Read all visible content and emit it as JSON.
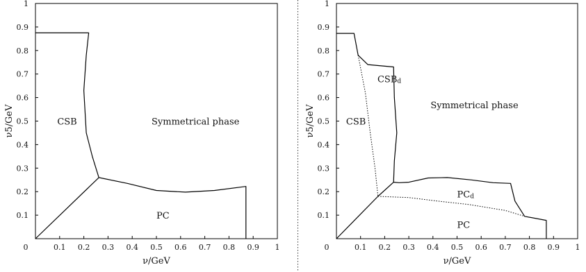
{
  "chart_data": [
    {
      "type": "line",
      "xlabel": "ν/GeV",
      "ylabel": "ν5/GeV",
      "xlim": [
        0,
        1
      ],
      "ylim": [
        0,
        1
      ],
      "xticks": [
        "0",
        "0.1",
        "0.2",
        "0.3",
        "0.4",
        "0.5",
        "0.6",
        "0.7",
        "0.8",
        "0.9",
        "1"
      ],
      "yticks": [
        "0.1",
        "0.2",
        "0.3",
        "0.4",
        "0.5",
        "0.6",
        "0.7",
        "0.8",
        "0.9",
        "1"
      ],
      "regions": [
        {
          "label": "CSB",
          "x": 0.09,
          "y": 0.5
        },
        {
          "label": "Symmetrical phase",
          "x": 0.48,
          "y": 0.5
        },
        {
          "label": "PC",
          "x": 0.5,
          "y": 0.1
        }
      ],
      "series": [
        {
          "style": "solid",
          "points": [
            [
              0,
              0.875
            ],
            [
              0.22,
              0.875
            ],
            [
              0.21,
              0.78
            ],
            [
              0.2,
              0.63
            ],
            [
              0.21,
              0.45
            ],
            [
              0.235,
              0.35
            ],
            [
              0.262,
              0.26
            ]
          ]
        },
        {
          "style": "solid",
          "points": [
            [
              0,
              0
            ],
            [
              0.262,
              0.26
            ]
          ]
        },
        {
          "style": "solid",
          "points": [
            [
              0.262,
              0.26
            ],
            [
              0.38,
              0.235
            ],
            [
              0.5,
              0.205
            ],
            [
              0.62,
              0.198
            ],
            [
              0.74,
              0.205
            ],
            [
              0.87,
              0.222
            ],
            [
              0.87,
              0
            ]
          ]
        }
      ]
    },
    {
      "type": "line",
      "xlabel": "ν/GeV",
      "ylabel": "ν5/GeV",
      "xlim": [
        0,
        1
      ],
      "ylim": [
        0,
        1
      ],
      "xticks": [
        "0",
        "0.1",
        "0.2",
        "0.3",
        "0.4",
        "0.5",
        "0.6",
        "0.7",
        "0.8",
        "0.9",
        "1"
      ],
      "yticks": [
        "0.1",
        "0.2",
        "0.3",
        "0.4",
        "0.5",
        "0.6",
        "0.7",
        "0.8",
        "0.9",
        "1"
      ],
      "regions": [
        {
          "label": "CSB",
          "x": 0.04,
          "y": 0.5
        },
        {
          "label": "CSB",
          "sub": "d",
          "x": 0.17,
          "y": 0.68
        },
        {
          "label": "Symmetrical phase",
          "x": 0.39,
          "y": 0.57
        },
        {
          "label": "PC",
          "sub": "d",
          "x": 0.5,
          "y": 0.19
        },
        {
          "label": "PC",
          "x": 0.5,
          "y": 0.06
        }
      ],
      "series": [
        {
          "style": "solid",
          "points": [
            [
              0,
              0.873
            ],
            [
              0.073,
              0.873
            ],
            [
              0.09,
              0.78
            ],
            [
              0.13,
              0.74
            ],
            [
              0.237,
              0.73
            ],
            [
              0.24,
              0.6
            ],
            [
              0.25,
              0.45
            ],
            [
              0.24,
              0.33
            ],
            [
              0.237,
              0.24
            ]
          ]
        },
        {
          "style": "solid",
          "points": [
            [
              0,
              0
            ],
            [
              0.172,
              0.18
            ],
            [
              0.237,
              0.24
            ]
          ]
        },
        {
          "style": "solid",
          "points": [
            [
              0.237,
              0.24
            ],
            [
              0.26,
              0.238
            ],
            [
              0.3,
              0.24
            ],
            [
              0.38,
              0.258
            ],
            [
              0.46,
              0.26
            ],
            [
              0.56,
              0.25
            ],
            [
              0.65,
              0.238
            ],
            [
              0.722,
              0.235
            ],
            [
              0.74,
              0.16
            ],
            [
              0.78,
              0.095
            ],
            [
              0.87,
              0.078
            ],
            [
              0.87,
              0
            ]
          ]
        },
        {
          "style": "dotted",
          "points": [
            [
              0.09,
              0.78
            ],
            [
              0.12,
              0.62
            ],
            [
              0.14,
              0.45
            ],
            [
              0.16,
              0.3
            ],
            [
              0.172,
              0.18
            ]
          ]
        },
        {
          "style": "dotted",
          "points": [
            [
              0.172,
              0.18
            ],
            [
              0.3,
              0.175
            ],
            [
              0.42,
              0.16
            ],
            [
              0.55,
              0.145
            ],
            [
              0.7,
              0.12
            ],
            [
              0.78,
              0.095
            ]
          ]
        }
      ]
    }
  ]
}
